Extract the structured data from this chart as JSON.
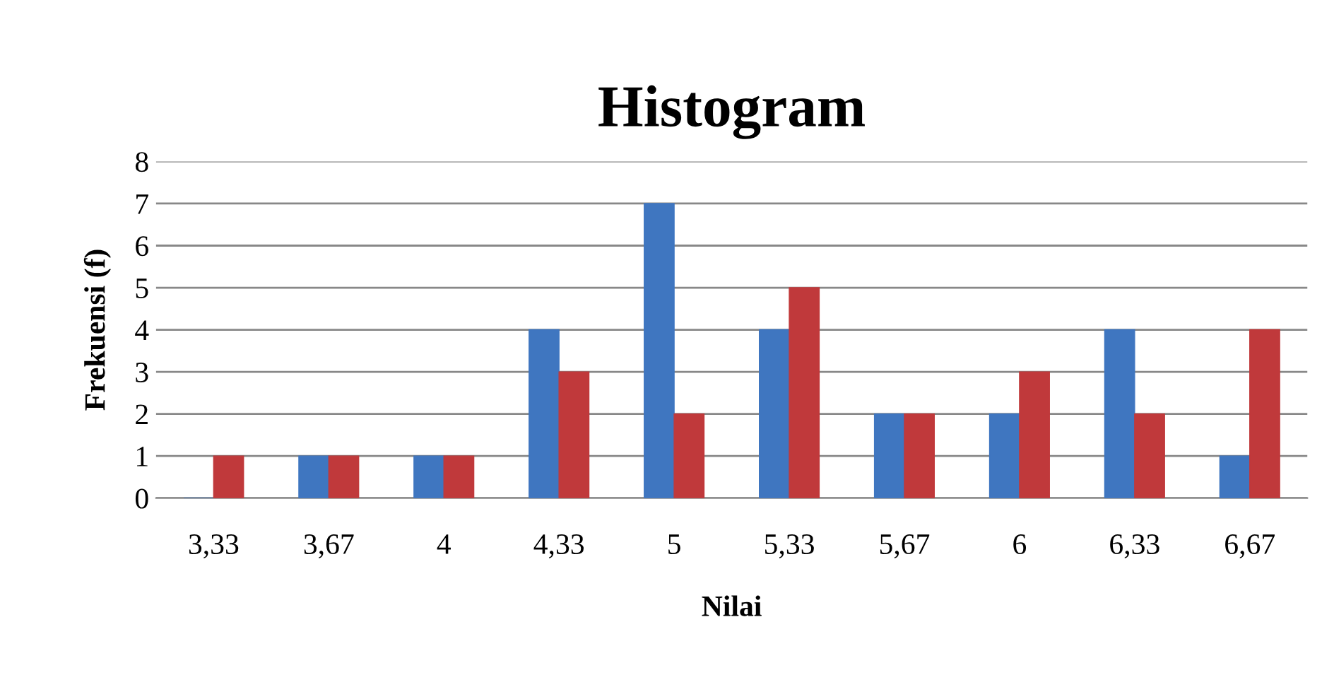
{
  "chart_data": {
    "type": "bar",
    "title": "Histogram",
    "xlabel": "Nilai",
    "ylabel": "Frekuensi (f)",
    "categories": [
      "3,33",
      "3,67",
      "4",
      "4,33",
      "5",
      "5,33",
      "5,67",
      "6",
      "6,33",
      "6,67"
    ],
    "series": [
      {
        "color": "#3f76c0",
        "values": [
          0,
          1,
          1,
          4,
          7,
          4,
          2,
          2,
          4,
          1
        ]
      },
      {
        "color": "#c0393b",
        "values": [
          1,
          1,
          1,
          3,
          2,
          5,
          2,
          3,
          2,
          4
        ]
      }
    ],
    "ylim": [
      0,
      8
    ],
    "yticks": [
      0,
      1,
      2,
      3,
      4,
      5,
      6,
      7,
      8
    ],
    "grid": "y",
    "legend": false
  }
}
